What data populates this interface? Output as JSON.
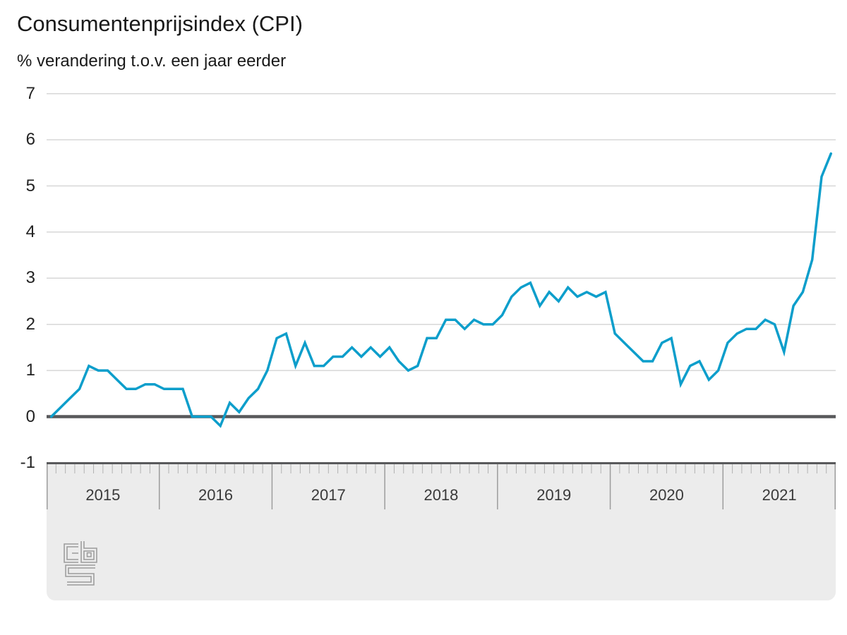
{
  "page": {
    "title": "Consumentenprijsindex (CPI)",
    "subtitle": "% verandering t.o.v. een jaar eerder"
  },
  "branding": {
    "logo": "cbs-logo",
    "logo_color": "#9b9b9b"
  },
  "colors": {
    "line": "#0d9ecb",
    "grid": "#d7d7d7",
    "zero_line": "#58595b",
    "band_bg": "#ececec",
    "tick": "#b2b2b2",
    "separator": "#9c9c9c",
    "text": "#1a1a1a"
  },
  "chart_data": {
    "type": "line",
    "title": "Consumentenprijsindex (CPI)",
    "ylabel": "% verandering t.o.v. een jaar eerder",
    "frequency": "monthly",
    "x_start": "2015-01",
    "x_end": "2021-12",
    "x_year_labels": [
      "2015",
      "2016",
      "2017",
      "2018",
      "2019",
      "2020",
      "2021"
    ],
    "y_ticks": [
      7,
      6,
      5,
      4,
      3,
      2,
      1,
      0,
      -1
    ],
    "ylim": [
      -1,
      7
    ],
    "grid": "horizontal-only",
    "legend": "none",
    "series": [
      {
        "name": "CPI % verandering t.o.v. een jaar eerder",
        "color": "#0d9ecb",
        "values": [
          0.0,
          0.2,
          0.4,
          0.6,
          1.1,
          1.0,
          1.0,
          0.8,
          0.6,
          0.6,
          0.7,
          0.7,
          0.6,
          0.6,
          0.6,
          0.0,
          0.0,
          0.0,
          -0.2,
          0.3,
          0.1,
          0.4,
          0.6,
          1.0,
          1.7,
          1.8,
          1.1,
          1.6,
          1.1,
          1.1,
          1.3,
          1.3,
          1.5,
          1.3,
          1.5,
          1.3,
          1.5,
          1.2,
          1.0,
          1.1,
          1.7,
          1.7,
          2.1,
          2.1,
          1.9,
          2.1,
          2.0,
          2.0,
          2.2,
          2.6,
          2.8,
          2.9,
          2.4,
          2.7,
          2.5,
          2.8,
          2.6,
          2.7,
          2.6,
          2.7,
          1.8,
          1.6,
          1.4,
          1.2,
          1.2,
          1.6,
          1.7,
          0.7,
          1.1,
          1.2,
          0.8,
          1.0,
          1.6,
          1.8,
          1.9,
          1.9,
          2.1,
          2.0,
          1.4,
          2.4,
          2.7,
          3.4,
          5.2,
          5.7
        ]
      }
    ]
  }
}
